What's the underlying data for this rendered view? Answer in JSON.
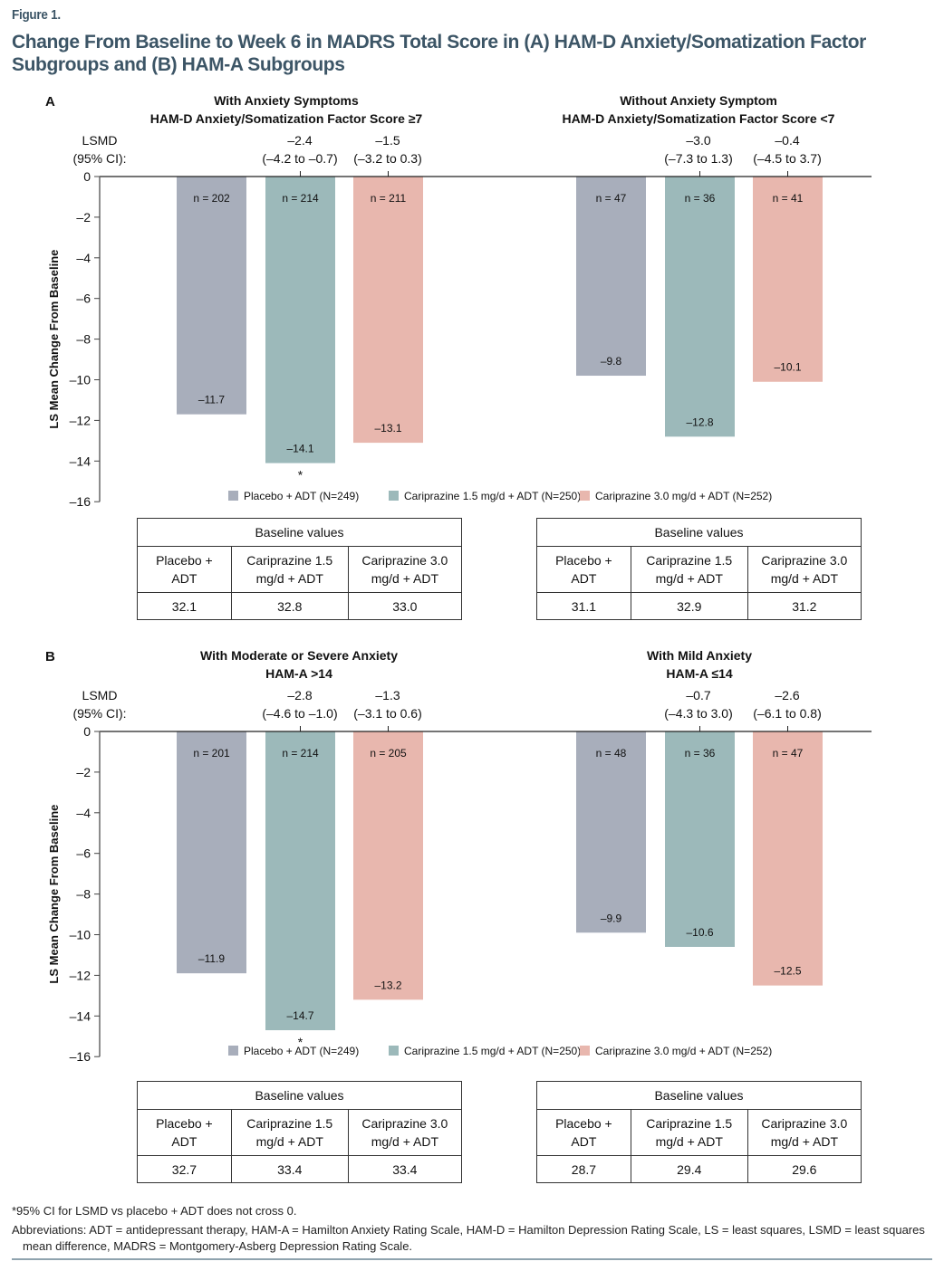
{
  "figure_label": "Figure 1.",
  "figure_title": "Change From Baseline to Week 6 in MADRS Total Score in (A) HAM-D Anxiety/Somatization Factor Subgroups and (B) HAM-A Subgroups",
  "colors": {
    "placebo": "#a8aebb",
    "cari15": "#9cb9ba",
    "cari30": "#e8b7ae",
    "title": "#3c5566"
  },
  "legend": [
    {
      "label": "Placebo + ADT (N=249)",
      "color_key": "placebo"
    },
    {
      "label": "Cariprazine 1.5 mg/d + ADT (N=250)",
      "color_key": "cari15"
    },
    {
      "label": "Cariprazine 3.0 mg/d + ADT (N=252)",
      "color_key": "cari30"
    }
  ],
  "chart_data": [
    {
      "type": "bar",
      "panel": "A",
      "ylabel": "LS Mean Change From Baseline",
      "ylim": [
        -16,
        0
      ],
      "yticks": [
        0,
        -2,
        -4,
        -6,
        -8,
        -10,
        -12,
        -14,
        -16
      ],
      "lsmd_label": [
        "LSMD",
        "(95% CI):"
      ],
      "groups": [
        {
          "title": [
            "With Anxiety Symptoms",
            "HAM-D Anxiety/Somatization Factor Score ≥7"
          ],
          "bars": [
            {
              "series": "Placebo + ADT",
              "color_key": "placebo",
              "value": -11.7,
              "label": "–11.7",
              "n": "n = 202",
              "lsmd": null,
              "ci": null,
              "sig": false
            },
            {
              "series": "Cariprazine 1.5 mg/d + ADT",
              "color_key": "cari15",
              "value": -14.1,
              "label": "–14.1",
              "n": "n = 214",
              "lsmd": "–2.4",
              "ci": "(–4.2 to –0.7)",
              "sig": true
            },
            {
              "series": "Cariprazine 3.0 mg/d + ADT",
              "color_key": "cari30",
              "value": -13.1,
              "label": "–13.1",
              "n": "n = 211",
              "lsmd": "–1.5",
              "ci": "(–3.2 to 0.3)",
              "sig": false
            }
          ]
        },
        {
          "title": [
            "Without Anxiety Symptom",
            "HAM-D Anxiety/Somatization Factor Score <7"
          ],
          "bars": [
            {
              "series": "Placebo + ADT",
              "color_key": "placebo",
              "value": -9.8,
              "label": "–9.8",
              "n": "n = 47",
              "lsmd": null,
              "ci": null,
              "sig": false
            },
            {
              "series": "Cariprazine 1.5 mg/d + ADT",
              "color_key": "cari15",
              "value": -12.8,
              "label": "–12.8",
              "n": "n = 36",
              "lsmd": "–3.0",
              "ci": "(–7.3 to 1.3)",
              "sig": false
            },
            {
              "series": "Cariprazine 3.0 mg/d + ADT",
              "color_key": "cari30",
              "value": -10.1,
              "label": "–10.1",
              "n": "n = 41",
              "lsmd": "–0.4",
              "ci": "(–4.5 to 3.7)",
              "sig": false
            }
          ]
        }
      ]
    },
    {
      "type": "bar",
      "panel": "B",
      "ylabel": "LS Mean Change From Baseline",
      "ylim": [
        -16,
        0
      ],
      "yticks": [
        0,
        -2,
        -4,
        -6,
        -8,
        -10,
        -12,
        -14,
        -16
      ],
      "lsmd_label": [
        "LSMD",
        "(95% CI):"
      ],
      "groups": [
        {
          "title": [
            "With Moderate or Severe Anxiety",
            "HAM-A >14"
          ],
          "bars": [
            {
              "series": "Placebo + ADT",
              "color_key": "placebo",
              "value": -11.9,
              "label": "–11.9",
              "n": "n = 201",
              "lsmd": null,
              "ci": null,
              "sig": false
            },
            {
              "series": "Cariprazine 1.5 mg/d + ADT",
              "color_key": "cari15",
              "value": -14.7,
              "label": "–14.7",
              "n": "n = 214",
              "lsmd": "–2.8",
              "ci": "(–4.6 to –1.0)",
              "sig": true
            },
            {
              "series": "Cariprazine 3.0 mg/d + ADT",
              "color_key": "cari30",
              "value": -13.2,
              "label": "–13.2",
              "n": "n = 205",
              "lsmd": "–1.3",
              "ci": "(–3.1 to 0.6)",
              "sig": false
            }
          ]
        },
        {
          "title": [
            "With Mild Anxiety",
            "HAM-A ≤14"
          ],
          "bars": [
            {
              "series": "Placebo + ADT",
              "color_key": "placebo",
              "value": -9.9,
              "label": "–9.9",
              "n": "n = 48",
              "lsmd": null,
              "ci": null,
              "sig": false
            },
            {
              "series": "Cariprazine 1.5 mg/d + ADT",
              "color_key": "cari15",
              "value": -10.6,
              "label": "–10.6",
              "n": "n = 36",
              "lsmd": "–0.7",
              "ci": "(–4.3 to 3.0)",
              "sig": false
            },
            {
              "series": "Cariprazine 3.0 mg/d + ADT",
              "color_key": "cari30",
              "value": -12.5,
              "label": "–12.5",
              "n": "n = 47",
              "lsmd": "–2.6",
              "ci": "(–6.1 to 0.8)",
              "sig": false
            }
          ]
        }
      ]
    }
  ],
  "significance_marker": "*",
  "baseline_tables": [
    {
      "panel": "A",
      "group": 0,
      "header": "Baseline values",
      "columns": [
        "Placebo +\nADT",
        "Cariprazine 1.5\nmg/d + ADT",
        "Cariprazine 3.0\nmg/d + ADT"
      ],
      "values": [
        "32.1",
        "32.8",
        "33.0"
      ]
    },
    {
      "panel": "A",
      "group": 1,
      "header": "Baseline values",
      "columns": [
        "Placebo +\nADT",
        "Cariprazine 1.5\nmg/d + ADT",
        "Cariprazine 3.0\nmg/d + ADT"
      ],
      "values": [
        "31.1",
        "32.9",
        "31.2"
      ]
    },
    {
      "panel": "B",
      "group": 0,
      "header": "Baseline values",
      "columns": [
        "Placebo +\nADT",
        "Cariprazine 1.5\nmg/d + ADT",
        "Cariprazine 3.0\nmg/d + ADT"
      ],
      "values": [
        "32.7",
        "33.4",
        "33.4"
      ]
    },
    {
      "panel": "B",
      "group": 1,
      "header": "Baseline values",
      "columns": [
        "Placebo +\nADT",
        "Cariprazine 1.5\nmg/d + ADT",
        "Cariprazine 3.0\nmg/d + ADT"
      ],
      "values": [
        "28.7",
        "29.4",
        "29.6"
      ]
    }
  ],
  "footnote": "*95% CI for LSMD vs placebo + ADT does not cross 0.",
  "abbreviations": [
    "Abbreviations: ADT = antidepressant therapy, HAM-A = Hamilton Anxiety Rating Scale, HAM-D = Hamilton Depression Rating Scale, LS = least squares, LSMD = least squares",
    "mean difference, MADRS = Montgomery-Asberg Depression Rating Scale."
  ]
}
